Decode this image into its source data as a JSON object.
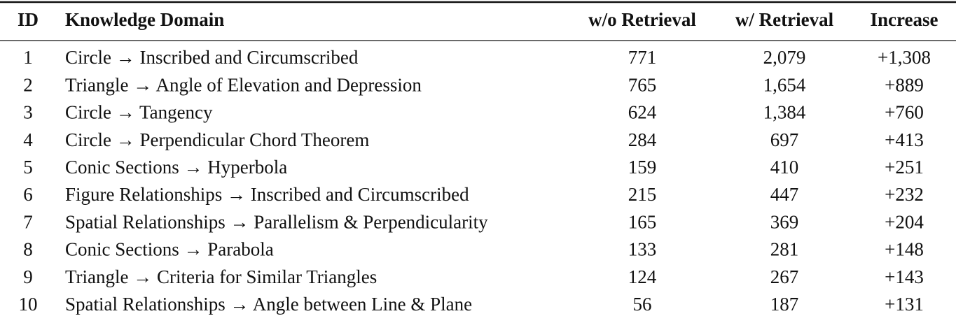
{
  "table": {
    "header": [
      "ID",
      "Knowledge Domain",
      "w/o Retrieval",
      "w/ Retrieval",
      "Increase"
    ],
    "rows": [
      [
        "1",
        "Circle → Inscribed and Circumscribed",
        "771",
        "2,079",
        "+1,308"
      ],
      [
        "2",
        "Triangle → Angle of Elevation and Depression",
        "765",
        "1,654",
        "+889"
      ],
      [
        "3",
        "Circle → Tangency",
        "624",
        "1,384",
        "+760"
      ],
      [
        "4",
        "Circle → Perpendicular Chord Theorem",
        "284",
        "697",
        "+413"
      ],
      [
        "5",
        "Conic Sections → Hyperbola",
        "159",
        "410",
        "+251"
      ],
      [
        "6",
        "Figure Relationships → Inscribed and Circumscribed",
        "215",
        "447",
        "+232"
      ],
      [
        "7",
        "Spatial Relationships → Parallelism & Perpendicularity",
        "165",
        "369",
        "+204"
      ],
      [
        "8",
        "Conic Sections → Parabola",
        "133",
        "281",
        "+148"
      ],
      [
        "9",
        "Triangle → Criteria for Similar Triangles",
        "124",
        "267",
        "+143"
      ],
      [
        "10",
        "Spatial Relationships → Angle between Line & Plane",
        "56",
        "187",
        "+131"
      ]
    ]
  }
}
